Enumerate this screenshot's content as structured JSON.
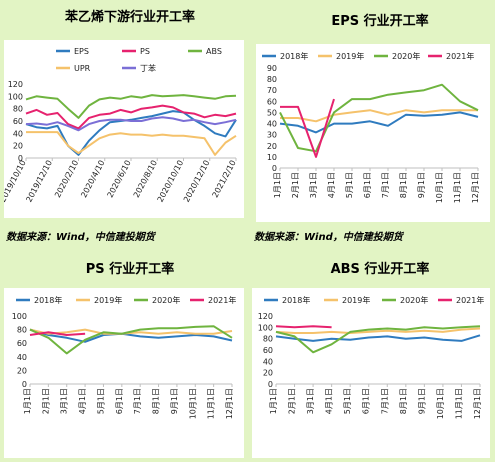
{
  "panels": [
    {
      "title": "苯乙烯下游行业开工率"
    },
    {
      "title": "EPS 行业开工率"
    },
    {
      "title": "PS 行业开工率"
    },
    {
      "title": "ABS 行业开工率"
    }
  ],
  "source_left": "数据来源：Wind，中信建投期货",
  "source_right": "数据来源：Wind，中信建投期货",
  "chart_data": [
    {
      "type": "line",
      "yticks": [
        0,
        20,
        40,
        60,
        80,
        100,
        120
      ],
      "ylim": [
        0,
        120
      ],
      "x_dates": [
        "2019/10/10",
        "2019/12/10",
        "2020/2/10",
        "2020/4/10",
        "2020/6/10",
        "2020/8/10",
        "2020/10/10",
        "2020/12/10",
        "2021/2/10"
      ],
      "x": [
        "2019/10/10",
        "2019/11/10",
        "2019/12/10",
        "2020/1/10",
        "2020/2/10",
        "2020/2/25",
        "2020/3/10",
        "2020/4/10",
        "2020/5/10",
        "2020/6/10",
        "2020/7/10",
        "2020/8/10",
        "2020/9/10",
        "2020/10/10",
        "2020/11/10",
        "2020/12/10",
        "2021/1/10",
        "2021/2/10",
        "2021/2/25",
        "2021/3/10",
        "2021/4/10"
      ],
      "series": [
        {
          "name": "EPS",
          "color": "#2f7bbf",
          "values": [
            55,
            50,
            48,
            52,
            20,
            5,
            28,
            45,
            58,
            60,
            62,
            65,
            68,
            72,
            76,
            74,
            62,
            52,
            40,
            35,
            62
          ]
        },
        {
          "name": "PS",
          "color": "#e6226e",
          "values": [
            72,
            78,
            70,
            73,
            55,
            48,
            65,
            70,
            72,
            78,
            74,
            80,
            82,
            85,
            82,
            74,
            72,
            66,
            70,
            68,
            72
          ]
        },
        {
          "name": "ABS",
          "color": "#6fb43f",
          "values": [
            95,
            100,
            98,
            96,
            80,
            65,
            85,
            95,
            98,
            96,
            100,
            98,
            102,
            100,
            101,
            102,
            100,
            98,
            96,
            100,
            101
          ]
        },
        {
          "name": "UPR",
          "color": "#f5c26b",
          "values": [
            42,
            42,
            42,
            42,
            20,
            8,
            20,
            32,
            38,
            40,
            38,
            38,
            36,
            38,
            36,
            36,
            34,
            32,
            5,
            25,
            36
          ]
        },
        {
          "name": "丁苯",
          "color": "#7b6fd6",
          "values": [
            55,
            56,
            54,
            58,
            52,
            45,
            55,
            60,
            62,
            62,
            60,
            60,
            64,
            66,
            64,
            60,
            62,
            58,
            55,
            58,
            62
          ]
        }
      ]
    },
    {
      "type": "line",
      "yticks": [
        0,
        10,
        20,
        30,
        40,
        50,
        60,
        70,
        80,
        90
      ],
      "ylim": [
        0,
        90
      ],
      "x_months": [
        "1月1日",
        "2月1日",
        "3月1日",
        "4月1日",
        "5月1日",
        "6月1日",
        "7月1日",
        "8月1日",
        "9月1日",
        "10月1日",
        "11月1日",
        "12月1日"
      ],
      "series": [
        {
          "name": "2018年",
          "color": "#2f7bbf",
          "values": [
            40,
            38,
            32,
            40,
            40,
            42,
            38,
            48,
            47,
            48,
            50,
            46
          ]
        },
        {
          "name": "2019年",
          "color": "#f5c26b",
          "values": [
            45,
            45,
            42,
            48,
            50,
            52,
            48,
            52,
            50,
            52,
            52,
            52
          ]
        },
        {
          "name": "2020年",
          "color": "#6fb43f",
          "values": [
            50,
            18,
            15,
            50,
            62,
            62,
            66,
            68,
            70,
            75,
            60,
            52
          ]
        },
        {
          "name": "2021年",
          "color": "#e6226e",
          "values": [
            55,
            55,
            10,
            62,
            null,
            null,
            null,
            null,
            null,
            null,
            null,
            null
          ]
        }
      ]
    },
    {
      "type": "line",
      "yticks": [
        0,
        20,
        40,
        60,
        80,
        100
      ],
      "ylim": [
        0,
        100
      ],
      "x_months": [
        "1月1日",
        "2月1日",
        "3月1日",
        "4月1日",
        "5月1日",
        "6月1日",
        "7月1日",
        "8月1日",
        "9月1日",
        "10月1日",
        "11月1日",
        "12月1日"
      ],
      "series": [
        {
          "name": "2018年",
          "color": "#2f7bbf",
          "values": [
            80,
            72,
            68,
            62,
            72,
            74,
            70,
            68,
            70,
            72,
            70,
            64
          ]
        },
        {
          "name": "2019年",
          "color": "#f5c26b",
          "values": [
            80,
            74,
            76,
            80,
            74,
            74,
            76,
            74,
            76,
            74,
            74,
            78
          ]
        },
        {
          "name": "2020年",
          "color": "#6fb43f",
          "values": [
            80,
            68,
            45,
            65,
            76,
            74,
            80,
            82,
            82,
            84,
            85,
            68
          ]
        },
        {
          "name": "2021年",
          "color": "#e6226e",
          "values": [
            72,
            76,
            72,
            74,
            null,
            null,
            null,
            null,
            null,
            null,
            null,
            null
          ]
        }
      ]
    },
    {
      "type": "line",
      "yticks": [
        0,
        20,
        40,
        60,
        80,
        100,
        120
      ],
      "ylim": [
        0,
        120
      ],
      "x_months": [
        "1月1日",
        "2月1日",
        "3月1日",
        "4月1日",
        "5月1日",
        "6月1日",
        "7月1日",
        "8月1日",
        "9月1日",
        "10月1日",
        "11月1日",
        "12月1日"
      ],
      "series": [
        {
          "name": "2018年",
          "color": "#2f7bbf",
          "values": [
            84,
            80,
            76,
            80,
            78,
            82,
            84,
            80,
            82,
            78,
            76,
            86
          ]
        },
        {
          "name": "2019年",
          "color": "#f5c26b",
          "values": [
            92,
            90,
            90,
            92,
            90,
            92,
            94,
            92,
            94,
            92,
            96,
            98
          ]
        },
        {
          "name": "2020年",
          "color": "#6fb43f",
          "values": [
            92,
            84,
            56,
            70,
            92,
            96,
            98,
            96,
            100,
            98,
            100,
            102
          ]
        },
        {
          "name": "2021年",
          "color": "#e6226e",
          "values": [
            102,
            100,
            102,
            100,
            null,
            null,
            null,
            null,
            null,
            null,
            null,
            null
          ]
        }
      ]
    }
  ]
}
